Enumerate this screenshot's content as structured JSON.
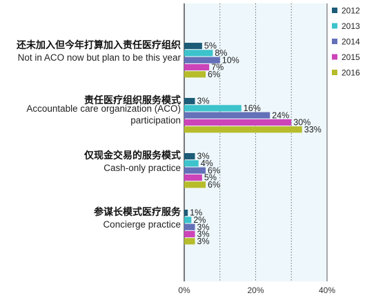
{
  "chart_data": {
    "type": "bar",
    "orientation": "horizontal",
    "categories": [
      {
        "zh": "还未加入但今年打算加入责任医疗组织",
        "en": [
          "Not in ACO now but plan to be this year"
        ]
      },
      {
        "zh": "责任医疗组织服务模式",
        "en": [
          "Accountable care organization (ACO)",
          "participation"
        ]
      },
      {
        "zh": "仅现金交易的服务模式",
        "en": [
          "Cash-only practice"
        ]
      },
      {
        "zh": "参谋长模式医疗服务",
        "en": [
          "Concierge practice"
        ]
      }
    ],
    "series": [
      {
        "name": "2012",
        "color": "#1d5c78",
        "values": [
          5,
          3,
          3,
          1
        ]
      },
      {
        "name": "2013",
        "color": "#3cc3cc",
        "values": [
          8,
          16,
          4,
          2
        ]
      },
      {
        "name": "2014",
        "color": "#6470b8",
        "values": [
          10,
          24,
          6,
          3
        ]
      },
      {
        "name": "2015",
        "color": "#cc44b8",
        "values": [
          7,
          30,
          5,
          3
        ]
      },
      {
        "name": "2016",
        "color": "#b6bc2a",
        "values": [
          6,
          33,
          6,
          3
        ]
      }
    ],
    "value_suffix": "%",
    "xlim": [
      0,
      40
    ],
    "x_ticks": [
      "0%",
      "20%",
      "40%"
    ],
    "grid": "vertical dotted",
    "legend_position": "right",
    "background": "#eef7fb"
  }
}
